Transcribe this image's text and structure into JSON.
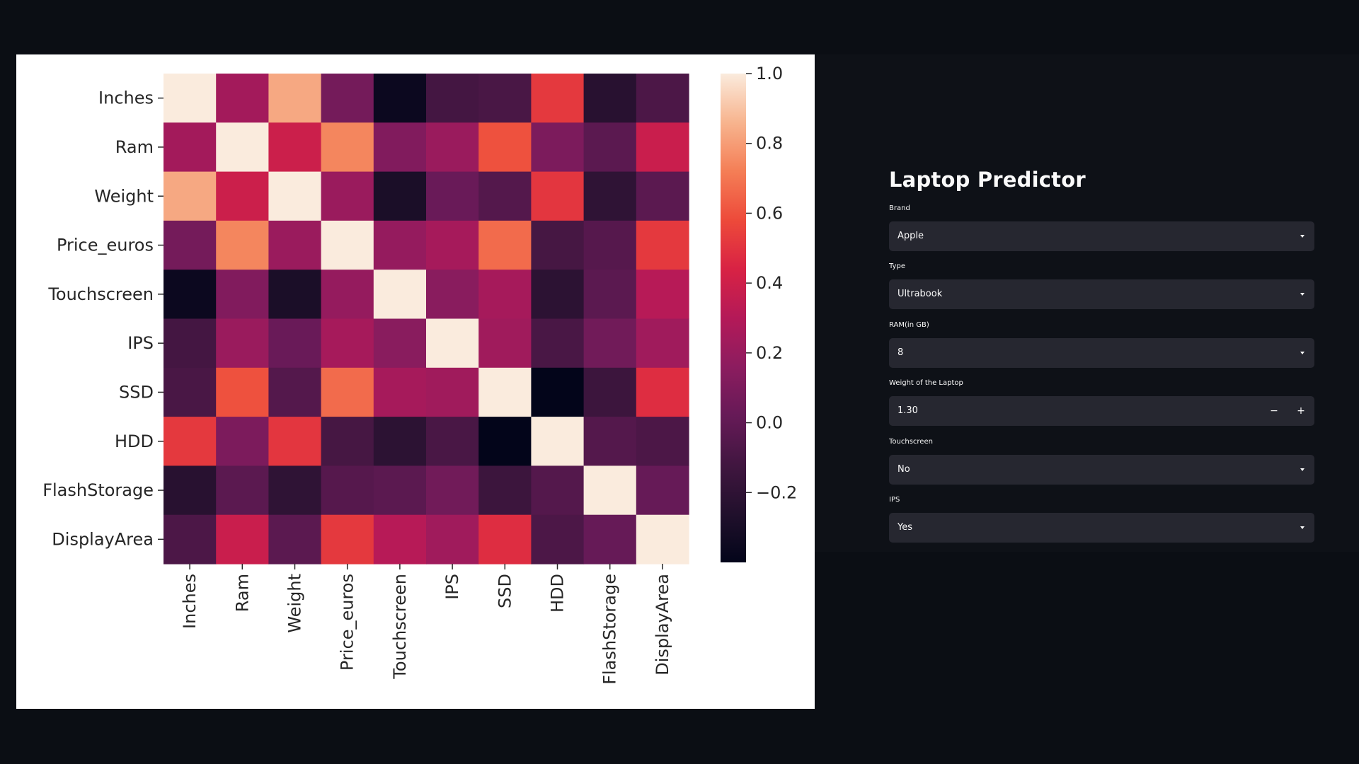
{
  "chart_data": {
    "type": "heatmap",
    "rows": [
      "Inches",
      "Ram",
      "Weight",
      "Price_euros",
      "Touchscreen",
      "IPS",
      "SSD",
      "HDD",
      "FlashStorage",
      "DisplayArea"
    ],
    "columns": [
      "Inches",
      "Ram",
      "Weight",
      "Price_euros",
      "Touchscreen",
      "IPS",
      "SSD",
      "HDD",
      "FlashStorage",
      "DisplayArea"
    ],
    "values": [
      [
        1.0,
        0.24,
        0.83,
        0.07,
        -0.36,
        -0.11,
        -0.09,
        0.52,
        -0.23,
        -0.08
      ],
      [
        0.24,
        1.0,
        0.39,
        0.74,
        0.12,
        0.21,
        0.6,
        0.1,
        -0.02,
        0.38
      ],
      [
        0.83,
        0.39,
        1.0,
        0.21,
        -0.29,
        0.03,
        -0.05,
        0.51,
        -0.2,
        -0.02
      ],
      [
        0.07,
        0.74,
        0.21,
        1.0,
        0.19,
        0.25,
        0.67,
        -0.1,
        -0.04,
        0.52
      ],
      [
        -0.36,
        0.12,
        -0.29,
        0.19,
        1.0,
        0.15,
        0.25,
        -0.21,
        -0.02,
        0.31
      ],
      [
        -0.11,
        0.21,
        0.03,
        0.25,
        0.15,
        1.0,
        0.23,
        -0.09,
        0.06,
        0.23
      ],
      [
        -0.09,
        0.6,
        -0.05,
        0.67,
        0.25,
        0.23,
        1.0,
        -0.4,
        -0.14,
        0.48
      ],
      [
        0.52,
        0.1,
        0.51,
        -0.1,
        -0.21,
        -0.09,
        -0.4,
        1.0,
        -0.05,
        -0.08
      ],
      [
        -0.23,
        -0.02,
        -0.2,
        -0.04,
        -0.02,
        0.06,
        -0.14,
        -0.05,
        1.0,
        0.02
      ],
      [
        -0.08,
        0.38,
        -0.02,
        0.52,
        0.31,
        0.23,
        0.48,
        -0.08,
        0.02,
        1.0
      ]
    ],
    "colorbar": {
      "min": -0.4,
      "max": 1.0,
      "ticks": [
        "1.0",
        "0.8",
        "0.6",
        "0.4",
        "0.2",
        "0.0",
        "−0.2"
      ]
    },
    "palette": "rocket"
  },
  "app": {
    "title": "Laptop Predictor",
    "fields": [
      {
        "label": "Brand",
        "value": "Apple",
        "kind": "select"
      },
      {
        "label": "Type",
        "value": "Ultrabook",
        "kind": "select"
      },
      {
        "label": "RAM(in GB)",
        "value": "8",
        "kind": "select"
      },
      {
        "label": "Weight of the Laptop",
        "value": "1.30",
        "kind": "number",
        "minus": "−",
        "plus": "+"
      },
      {
        "label": "Touchscreen",
        "value": "No",
        "kind": "select"
      },
      {
        "label": "IPS",
        "value": "Yes",
        "kind": "select"
      }
    ]
  },
  "colors": {
    "background": "#0b0e14",
    "app_background": "#0e1117",
    "input_background": "#262730",
    "text": "#fafafa"
  }
}
